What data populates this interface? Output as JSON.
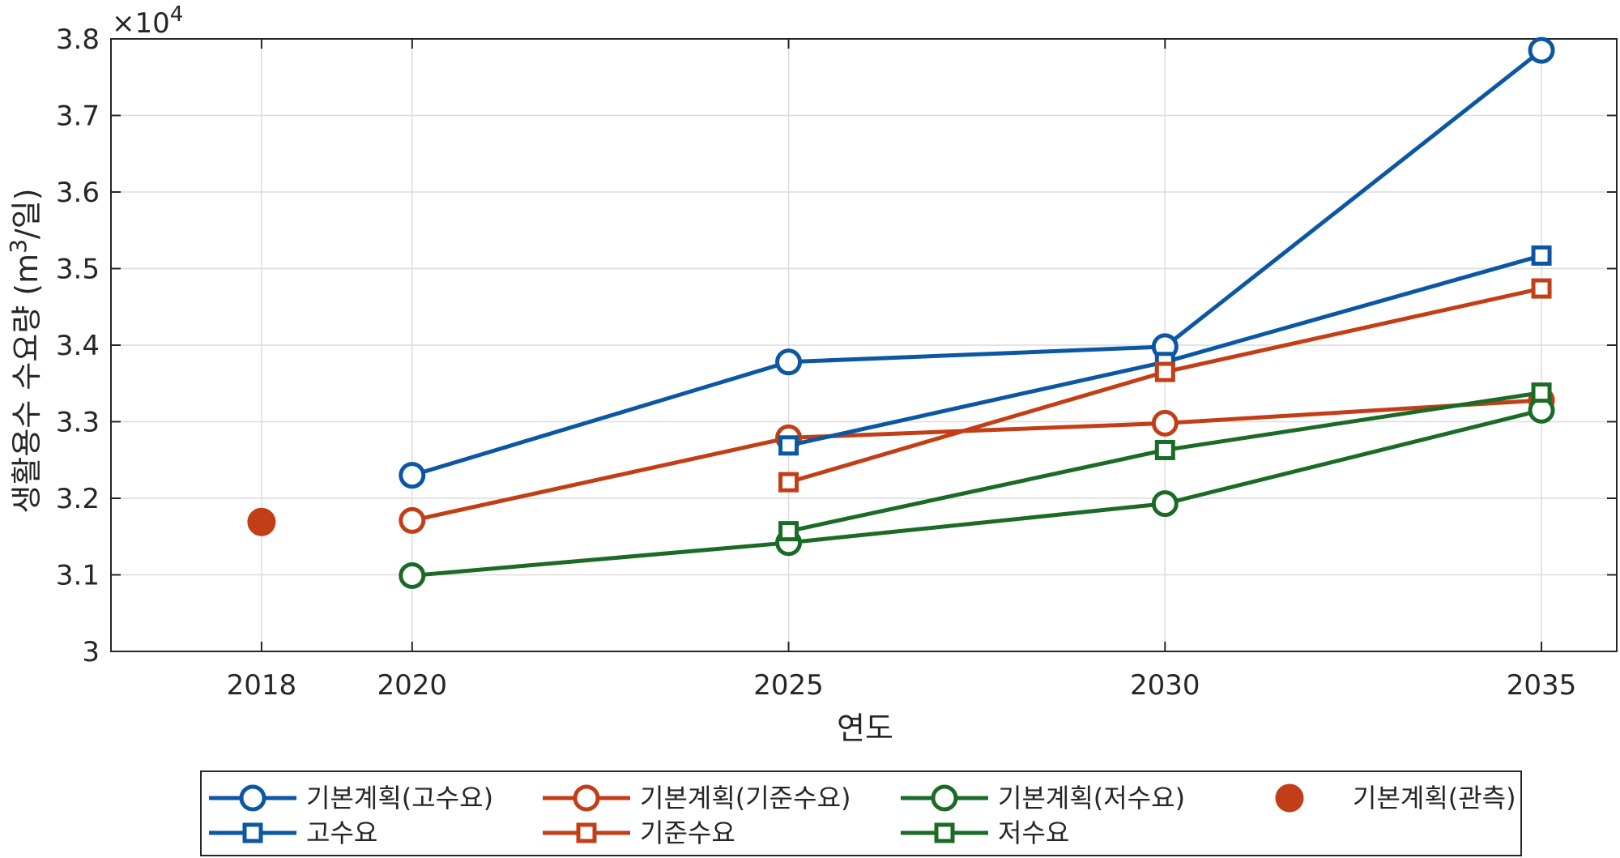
{
  "chart_data": {
    "type": "line",
    "xlabel": "연도",
    "ylabel": "생활용수 수요량 (m³/일)",
    "ylabel_parts": {
      "before": "생활용수 수요량 (m",
      "sup": "3",
      "after": "/일)"
    },
    "exponent_label": {
      "prefix": "×10",
      "power": "4"
    },
    "x_ticks": [
      "2018",
      "2020",
      "2025",
      "2030",
      "2035"
    ],
    "xlim": [
      2016,
      2036
    ],
    "y_ticks": [
      "3",
      "3.1",
      "3.2",
      "3.3",
      "3.4",
      "3.5",
      "3.6",
      "3.7",
      "3.8"
    ],
    "ylim": [
      3.0,
      3.8
    ],
    "y_scale_factor": 10000,
    "grid": true,
    "legend_position": "bottom",
    "colors": {
      "high": "#0b57a4",
      "base": "#c23e16",
      "low": "#1b6b27"
    },
    "series": [
      {
        "name": "기본계획(고수요)",
        "color": "#0b57a4",
        "marker": "circle",
        "x": [
          2020,
          2025,
          2030,
          2035
        ],
        "y": [
          3.23,
          3.378,
          3.398,
          3.785
        ]
      },
      {
        "name": "기본계획(기준수요)",
        "color": "#c23e16",
        "marker": "circle",
        "x": [
          2020,
          2025,
          2030,
          2035
        ],
        "y": [
          3.171,
          3.279,
          3.298,
          3.328
        ]
      },
      {
        "name": "기본계획(저수요)",
        "color": "#1b6b27",
        "marker": "circle",
        "x": [
          2020,
          2025,
          2030,
          2035
        ],
        "y": [
          3.099,
          3.142,
          3.193,
          3.315
        ]
      },
      {
        "name": "기본계획(관측)",
        "color": "#c23e16",
        "marker": "filled-circle",
        "x": [
          2018
        ],
        "y": [
          3.169
        ]
      },
      {
        "name": "고수요",
        "color": "#0b57a4",
        "marker": "square",
        "x": [
          2025,
          2030,
          2035
        ],
        "y": [
          3.269,
          3.378,
          3.517
        ]
      },
      {
        "name": "기준수요",
        "color": "#c23e16",
        "marker": "square",
        "x": [
          2025,
          2030,
          2035
        ],
        "y": [
          3.221,
          3.365,
          3.474
        ]
      },
      {
        "name": "저수요",
        "color": "#1b6b27",
        "marker": "square",
        "x": [
          2025,
          2030,
          2035
        ],
        "y": [
          3.157,
          3.263,
          3.338
        ]
      }
    ]
  }
}
